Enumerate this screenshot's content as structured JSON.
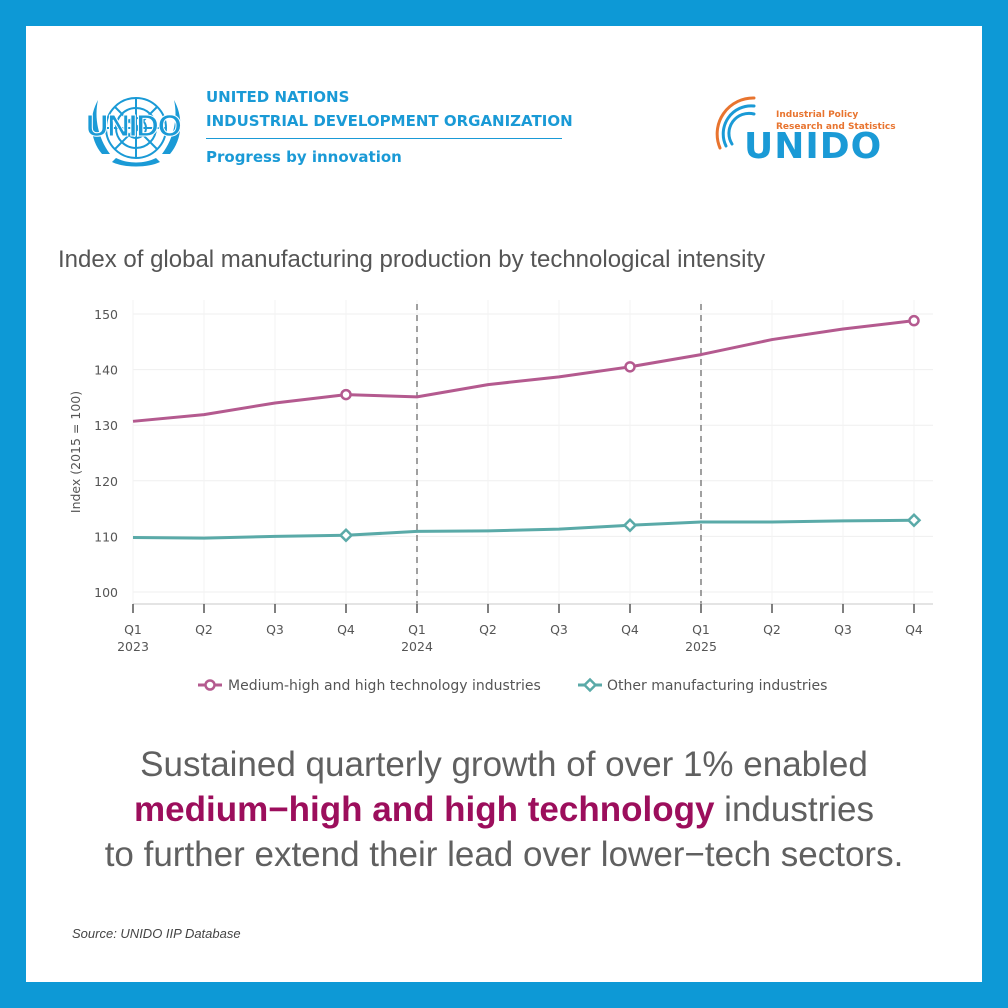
{
  "logos": {
    "unido_emblem_text": "UNIDO",
    "org_line1": "UNITED NATIONS",
    "org_line2": "INDUSTRIAL DEVELOPMENT ORGANIZATION",
    "org_tagline": "Progress by innovation",
    "ipr_line1": "Industrial Policy",
    "ipr_line2": "Research and Statistics",
    "ipr_brand": "UNIDO"
  },
  "colors": {
    "frame": "#0d99d6",
    "brand_blue": "#1a9ad6",
    "brand_orange": "#e8742f",
    "series_high": "#b45a8f",
    "series_other": "#5aaaa8",
    "highlight_text": "#9c0e5c"
  },
  "chart_data": {
    "type": "line",
    "title": "Index of global manufacturing production by technological intensity",
    "ylabel": "Index (2015 = 100)",
    "xlabel": "",
    "ylim": [
      100,
      152
    ],
    "yticks": [
      100,
      110,
      120,
      130,
      140,
      150
    ],
    "categories": [
      "Q1 2023",
      "Q2 2023",
      "Q3 2023",
      "Q4 2023",
      "Q1 2024",
      "Q2 2024",
      "Q3 2024",
      "Q4 2024",
      "Q1 2025",
      "Q2 2025",
      "Q3 2025",
      "Q4 2025"
    ],
    "quarter_labels": [
      "Q1",
      "Q2",
      "Q3",
      "Q4",
      "Q1",
      "Q2",
      "Q3",
      "Q4",
      "Q1",
      "Q2",
      "Q3",
      "Q4"
    ],
    "year_labels": [
      "2023",
      "",
      "",
      "",
      "2024",
      "",
      "",
      "",
      "2025",
      "",
      "",
      ""
    ],
    "year_dividers_at": [
      "Q1 2024",
      "Q1 2025"
    ],
    "grid": true,
    "legend_position": "bottom",
    "series": [
      {
        "name": "Medium-high and high technology industries",
        "color": "#b45a8f",
        "marker": "circle",
        "marked_points": [
          "Q4 2023",
          "Q4 2024",
          "Q4 2025"
        ],
        "values": [
          130.7,
          131.9,
          134.0,
          135.5,
          135.1,
          137.3,
          138.7,
          140.5,
          142.7,
          145.4,
          147.3,
          148.8
        ]
      },
      {
        "name": "Other manufacturing industries",
        "color": "#5aaaa8",
        "marker": "diamond",
        "marked_points": [
          "Q4 2023",
          "Q4 2024",
          "Q4 2025"
        ],
        "values": [
          109.8,
          109.7,
          110.0,
          110.2,
          110.9,
          111.0,
          111.3,
          112.0,
          112.6,
          112.6,
          112.8,
          112.9
        ]
      }
    ]
  },
  "message": {
    "line1": "Sustained quarterly growth of over 1% enabled",
    "highlight": "medium−high and high technology",
    "line2_rest": " industries",
    "line3": "to further extend their lead over lower−tech sectors."
  },
  "source": "Source: UNIDO IIP Database"
}
